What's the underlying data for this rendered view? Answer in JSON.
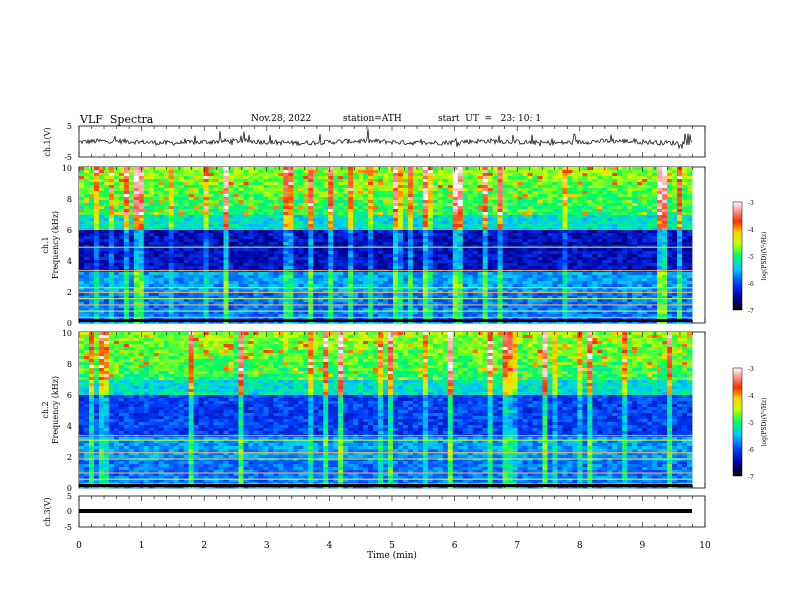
{
  "header": {
    "title": "VLF  Spectra",
    "date": "Nov.28, 2022",
    "station": "station=ATH",
    "start": "start  UT  =   23: 10: 1"
  },
  "chart_data": [
    {
      "type": "line",
      "name": "ch1-waveform",
      "ylabel": "ch.1(V)",
      "ylim": [
        -5,
        5
      ],
      "y_ticks": [
        "5",
        "-5"
      ],
      "xlim": [
        0,
        10
      ],
      "baseline": 0,
      "amplitude_approx": 1.5
    },
    {
      "type": "heatmap",
      "name": "ch1-spectrogram",
      "ylabel": "ch.1\nFrequency (kHz)",
      "ylabel_line1": "ch.1",
      "ylabel_line2": "Frequency  (kHz)",
      "ylim": [
        0,
        10
      ],
      "y_ticks": [
        "0",
        "2",
        "4",
        "6",
        "8",
        "10"
      ],
      "xlim": [
        0,
        9.83
      ],
      "colorbar": {
        "label": "log(PSD)(V²/Hz)",
        "range": [
          -7,
          -3
        ],
        "ticks": [
          "-3",
          "-4",
          "-5",
          "-6",
          "-7"
        ]
      }
    },
    {
      "type": "heatmap",
      "name": "ch2-spectrogram",
      "ylabel_line1": "ch.2",
      "ylabel_line2": "Frequency  (kHz)",
      "ylim": [
        0,
        10
      ],
      "y_ticks": [
        "0",
        "2",
        "4",
        "6",
        "8",
        "10"
      ],
      "xlim": [
        0,
        9.83
      ],
      "colorbar": {
        "label": "log(PSD)(V²/Hz)",
        "range": [
          -7,
          -3
        ],
        "ticks": [
          "-3",
          "-4",
          "-5",
          "-6",
          "-7"
        ]
      }
    },
    {
      "type": "line",
      "name": "ch3-waveform",
      "ylabel": "ch.3(V)",
      "ylim": [
        -5,
        5
      ],
      "y_ticks": [
        "5",
        "0",
        "-5"
      ],
      "xlim": [
        0,
        10
      ],
      "baseline": 0
    }
  ],
  "xaxis": {
    "label": "Time  (min)",
    "ticks": [
      "0",
      "1",
      "2",
      "3",
      "4",
      "5",
      "6",
      "7",
      "8",
      "9",
      "10"
    ],
    "range": [
      0,
      10
    ]
  }
}
